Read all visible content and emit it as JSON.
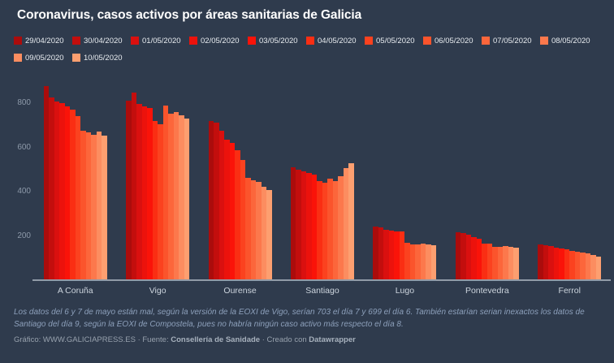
{
  "title": "Coronavirus, casos activos por áreas sanitarias de Galicia",
  "colors": {
    "background": "#2f3b4d",
    "title_text": "#ffffff",
    "axis_text": "#8d99a9",
    "category_text": "#ccd4dd",
    "footnote_text": "#8da0bb",
    "credits_text": "#97a1ad",
    "axis_line": "#919ba8"
  },
  "chart_data": {
    "type": "bar",
    "grouped": true,
    "title": "Coronavirus, casos activos por áreas sanitarias de Galicia",
    "xlabel": "",
    "ylabel": "",
    "ylim": [
      0,
      900
    ],
    "yticks": [
      200,
      400,
      600,
      800
    ],
    "grid": false,
    "legend_position": "top",
    "categories": [
      "A Coruña",
      "Vigo",
      "Ourense",
      "Santiago",
      "Lugo",
      "Pontevedra",
      "Ferrol"
    ],
    "series": [
      {
        "name": "29/04/2020",
        "color": "#ab0c0c",
        "values": [
          877,
          812,
          720,
          509,
          244,
          218,
          162
        ]
      },
      {
        "name": "30/04/2020",
        "color": "#c30e0d",
        "values": [
          825,
          850,
          712,
          501,
          237,
          214,
          159
        ]
      },
      {
        "name": "01/05/2020",
        "color": "#da100f",
        "values": [
          808,
          796,
          675,
          494,
          229,
          204,
          155
        ]
      },
      {
        "name": "02/05/2020",
        "color": "#ec120c",
        "values": [
          800,
          785,
          636,
          485,
          225,
          193,
          148
        ]
      },
      {
        "name": "03/05/2020",
        "color": "#fa1309",
        "values": [
          787,
          780,
          622,
          477,
          222,
          188,
          144
        ]
      },
      {
        "name": "04/05/2020",
        "color": "#fa2e13",
        "values": [
          772,
          720,
          588,
          449,
          221,
          164,
          140
        ]
      },
      {
        "name": "05/05/2020",
        "color": "#fb421f",
        "values": [
          743,
          704,
          542,
          440,
          169,
          166,
          133
        ]
      },
      {
        "name": "06/05/2020",
        "color": "#fb542c",
        "values": [
          676,
          790,
          462,
          461,
          163,
          152,
          129
        ]
      },
      {
        "name": "07/05/2020",
        "color": "#fc663b",
        "values": [
          667,
          753,
          453,
          449,
          160,
          150,
          125
        ]
      },
      {
        "name": "08/05/2020",
        "color": "#fc784c",
        "values": [
          658,
          762,
          443,
          470,
          166,
          155,
          122
        ]
      },
      {
        "name": "09/05/2020",
        "color": "#fc8d60",
        "values": [
          672,
          747,
          424,
          507,
          161,
          151,
          114
        ]
      },
      {
        "name": "10/05/2020",
        "color": "#fd9f70",
        "values": [
          653,
          731,
          406,
          529,
          157,
          147,
          107
        ]
      }
    ]
  },
  "footnote": "Los datos del 6 y 7 de mayo están mal, según la versión de la EOXI de Vigo, serían 703 el día 7 y 699 el día 6. También estarían serian inexactos los datos de Santiago del día 9, según la EOXI de Compostela, pues no habría ningún caso activo más respecto el día 8.",
  "credits": {
    "prefix": "Gráfico: ",
    "site": "WWW.GALICIAPRESS.ES",
    "sep1": " · Fuente: ",
    "source": "Consellería de Sanidade",
    "sep2": " · Creado con ",
    "tool": "Datawrapper"
  }
}
